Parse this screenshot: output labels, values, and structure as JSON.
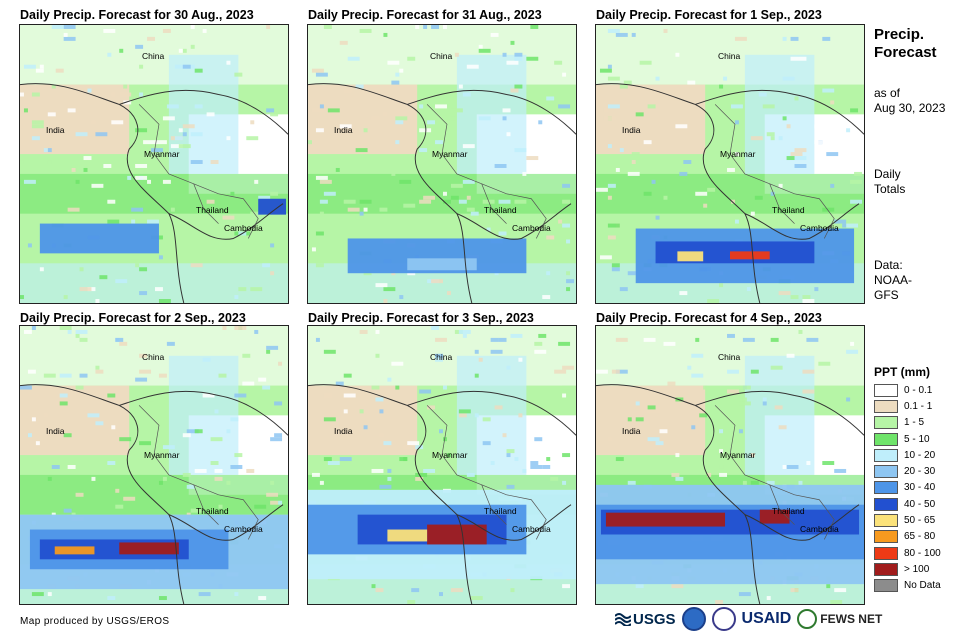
{
  "panels": [
    {
      "title": "Daily Precip. Forecast for 30 Aug., 2023",
      "labels": {
        "china": "China",
        "india": "India",
        "myanmar": "Myanmar",
        "thailand": "Thailand",
        "cambodia": "Cambodia"
      }
    },
    {
      "title": "Daily Precip. Forecast for 31 Aug., 2023",
      "labels": {
        "china": "China",
        "india": "India",
        "myanmar": "Myanmar",
        "thailand": "Thailand",
        "cambodia": "Cambodia"
      }
    },
    {
      "title": "Daily Precip. Forecast for 1 Sep., 2023",
      "labels": {
        "china": "China",
        "india": "India",
        "myanmar": "Myanmar",
        "thailand": "Thailand",
        "cambodia": "Cambodia"
      }
    },
    {
      "title": "Daily Precip. Forecast for 2 Sep., 2023",
      "labels": {
        "china": "China",
        "india": "India",
        "myanmar": "Myanmar",
        "thailand": "Thailand",
        "cambodia": "Cambodia"
      }
    },
    {
      "title": "Daily Precip. Forecast for 3 Sep., 2023",
      "labels": {
        "china": "China",
        "india": "India",
        "myanmar": "Myanmar",
        "thailand": "Thailand",
        "cambodia": "Cambodia"
      }
    },
    {
      "title": "Daily Precip. Forecast for 4 Sep., 2023",
      "labels": {
        "china": "China",
        "india": "India",
        "myanmar": "Myanmar",
        "thailand": "Thailand",
        "cambodia": "Cambodia"
      }
    }
  ],
  "side": {
    "title_line1": "Precip.",
    "title_line2": "Forecast",
    "asof_line1": "as of",
    "asof_line2": "Aug 30, 2023",
    "daily_line1": "Daily",
    "daily_line2": "Totals",
    "data_line1": "Data:",
    "data_line2": "NOAA-",
    "data_line3": "GFS"
  },
  "legend": {
    "title": "PPT (mm)",
    "items": [
      {
        "label": "0 - 0.1",
        "color": "#ffffff"
      },
      {
        "label": "0.1 - 1",
        "color": "#eddcc0"
      },
      {
        "label": "1 - 5",
        "color": "#b6f5a6"
      },
      {
        "label": "5 - 10",
        "color": "#6fe46a"
      },
      {
        "label": "10 - 20",
        "color": "#bfeefb"
      },
      {
        "label": "20 - 30",
        "color": "#8ec6f2"
      },
      {
        "label": "30 - 40",
        "color": "#4e95e8"
      },
      {
        "label": "40 - 50",
        "color": "#2250d0"
      },
      {
        "label": "50 - 65",
        "color": "#fbe27a"
      },
      {
        "label": "65 - 80",
        "color": "#f79a1f"
      },
      {
        "label": "80 - 100",
        "color": "#ee3a16"
      },
      {
        "label": "> 100",
        "color": "#a11c1c"
      },
      {
        "label": "No Data",
        "color": "#8c8c8c"
      }
    ]
  },
  "footer": {
    "credit": "Map produced by USGS/EROS",
    "logo_usgs": "USGS",
    "logo_usaid": "USAID",
    "logo_fews": "FEWS NET"
  }
}
